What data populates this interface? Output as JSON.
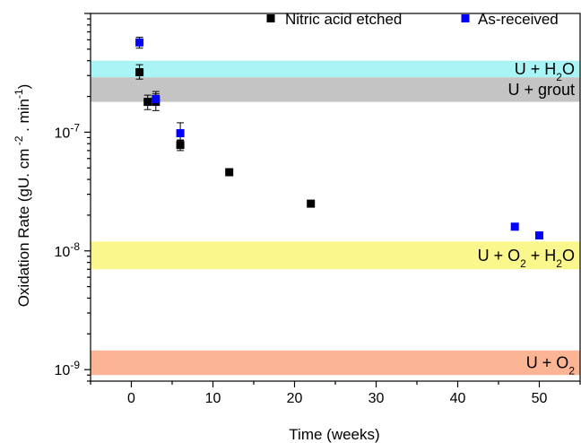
{
  "chart_data": {
    "type": "scatter",
    "xlabel": "Time (weeks)",
    "ylabel_parts": [
      "Oxidation Rate (gU. cm",
      " -2",
      " . min",
      "-1",
      ")"
    ],
    "xlim": [
      -5,
      55
    ],
    "ylim": [
      8e-10,
      1e-06
    ],
    "yscale": "log",
    "x_ticks": [
      0,
      10,
      20,
      30,
      40,
      50
    ],
    "x_tick_labels": [
      "0",
      "10",
      "20",
      "30",
      "40",
      "50"
    ],
    "y_ticks": [
      1e-09,
      1e-08,
      1e-07
    ],
    "y_tick_labels": [
      {
        "base": "10",
        "exp": "-9"
      },
      {
        "base": "10",
        "exp": "-8"
      },
      {
        "base": "10",
        "exp": "-7"
      }
    ],
    "legend_position": "top",
    "bands": [
      {
        "label_parts": [
          "U + H",
          "2",
          "O"
        ],
        "ymin": 2.9e-07,
        "ymax": 4e-07,
        "color": "#a9f5f5"
      },
      {
        "label_parts": [
          "U + grout"
        ],
        "ymin": 1.8e-07,
        "ymax": 2.9e-07,
        "color": "#c4c4c4"
      },
      {
        "label_parts": [
          "U + O",
          "2",
          " + H",
          "2",
          "O"
        ],
        "ymin": 7e-09,
        "ymax": 1.2e-08,
        "color": "#faf78c"
      },
      {
        "label_parts": [
          "U + O",
          "2"
        ],
        "ymin": 9e-10,
        "ymax": 1.45e-09,
        "color": "#fbb595"
      }
    ],
    "series": [
      {
        "name": "Nitric acid etched",
        "color": "#000000",
        "points": [
          {
            "x": 1,
            "y": 3.2e-07,
            "lo": 2.8e-07,
            "hi": 3.7e-07
          },
          {
            "x": 2,
            "y": 1.8e-07,
            "lo": 1.55e-07,
            "hi": 2.05e-07
          },
          {
            "x": 3,
            "y": 1.8e-07,
            "lo": 1.52e-07,
            "hi": 2.1e-07
          },
          {
            "x": 6,
            "y": 7.8e-08,
            "lo": 7e-08,
            "hi": 8.6e-08
          },
          {
            "x": 12,
            "y": 4.6e-08,
            "lo": 4.3e-08,
            "hi": 4.9e-08
          },
          {
            "x": 22,
            "y": 2.5e-08,
            "lo": 2.35e-08,
            "hi": 2.65e-08
          }
        ]
      },
      {
        "name": "As-received",
        "color": "#0000ff",
        "points": [
          {
            "x": 1,
            "y": 5.7e-07,
            "lo": 5.1e-07,
            "hi": 6.3e-07
          },
          {
            "x": 3,
            "y": 1.9e-07,
            "lo": 1.7e-07,
            "hi": 2.2e-07
          },
          {
            "x": 6,
            "y": 9.8e-08,
            "lo": 8.5e-08,
            "hi": 1.2e-07
          },
          {
            "x": 47,
            "y": 1.6e-08,
            "lo": 1.55e-08,
            "hi": 1.65e-08
          },
          {
            "x": 50,
            "y": 1.35e-08,
            "lo": 1.3e-08,
            "hi": 1.4e-08
          }
        ]
      }
    ]
  }
}
